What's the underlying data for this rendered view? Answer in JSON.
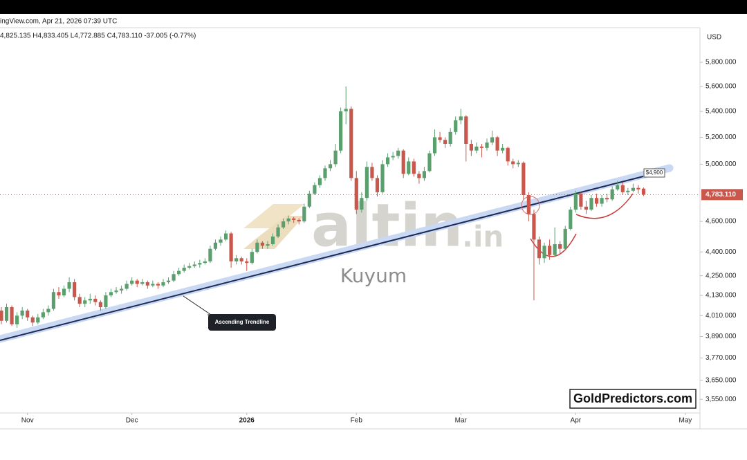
{
  "header": {
    "source": "ingView.com, Apr 21, 2026 07:39 UTC",
    "ohlc": "4,825.135  H4,833.405  L4,772.885  C4,783.110  -37.005 (-0.77%)"
  },
  "watermark": {
    "name": "altin",
    "suffix": ".in",
    "sub": "Kuyum"
  },
  "annotation": "Ascending Trendline",
  "level_label": "$4,900",
  "brand": "GoldPredictors.com",
  "chart_data": {
    "type": "candlestick",
    "axis_unit": "USD",
    "log": true,
    "grid": false,
    "up_color": "#5b9f6e",
    "down_color": "#c9574c",
    "xlim": [
      -0.26,
      133.8
    ],
    "xticks": [
      {
        "value": 5,
        "label": "Nov"
      },
      {
        "value": 25,
        "label": "Dec"
      },
      {
        "value": 47,
        "label": "2026"
      },
      {
        "value": 68,
        "label": "Feb"
      },
      {
        "value": 88,
        "label": "Mar"
      },
      {
        "value": 110,
        "label": "Apr"
      },
      {
        "value": 131,
        "label": "May"
      }
    ],
    "ylim": [
      3480,
      6100
    ],
    "yticks": [
      {
        "value": 3550,
        "label": "3,550.000"
      },
      {
        "value": 3650,
        "label": "3,650.000"
      },
      {
        "value": 3770,
        "label": "3,770.000"
      },
      {
        "value": 3890,
        "label": "3,890.000"
      },
      {
        "value": 4010,
        "label": "4,010.000"
      },
      {
        "value": 4130,
        "label": "4,130.000"
      },
      {
        "value": 4250,
        "label": "4,250.000"
      },
      {
        "value": 4400,
        "label": "4,400.000"
      },
      {
        "value": 4600,
        "label": "4,600.000"
      },
      {
        "value": 5000,
        "label": "5,000.000"
      },
      {
        "value": 5200,
        "label": "5,200.000"
      },
      {
        "value": 5400,
        "label": "5,400.000"
      },
      {
        "value": 5600,
        "label": "5,600.000"
      },
      {
        "value": 5800,
        "label": "5,800.000"
      }
    ],
    "last_price": {
      "value": 4783.11,
      "label": "4,783.110"
    },
    "ohlc": [
      [
        4040,
        4060,
        3960,
        3980
      ],
      [
        3980,
        4080,
        3970,
        4060
      ],
      [
        4060,
        4070,
        3950,
        3960
      ],
      [
        3960,
        4030,
        3940,
        4010
      ],
      [
        4010,
        4060,
        3990,
        4040
      ],
      [
        4040,
        4050,
        3980,
        4000
      ],
      [
        4000,
        4010,
        3950,
        3970
      ],
      [
        3970,
        4020,
        3960,
        4000
      ],
      [
        4000,
        4050,
        3990,
        4030
      ],
      [
        4030,
        4070,
        4010,
        4050
      ],
      [
        4050,
        4170,
        4040,
        4150
      ],
      [
        4150,
        4180,
        4110,
        4130
      ],
      [
        4130,
        4190,
        4120,
        4170
      ],
      [
        4170,
        4240,
        4150,
        4210
      ],
      [
        4210,
        4230,
        4100,
        4120
      ],
      [
        4120,
        4140,
        4060,
        4080
      ],
      [
        4080,
        4120,
        4060,
        4100
      ],
      [
        4100,
        4140,
        4080,
        4110
      ],
      [
        4110,
        4130,
        4070,
        4090
      ],
      [
        4090,
        4100,
        4040,
        4060
      ],
      [
        4060,
        4150,
        4050,
        4130
      ],
      [
        4130,
        4170,
        4120,
        4150
      ],
      [
        4150,
        4180,
        4140,
        4160
      ],
      [
        4160,
        4190,
        4140,
        4170
      ],
      [
        4170,
        4220,
        4160,
        4200
      ],
      [
        4200,
        4240,
        4190,
        4220
      ],
      [
        4220,
        4230,
        4180,
        4200
      ],
      [
        4200,
        4230,
        4190,
        4210
      ],
      [
        4210,
        4220,
        4170,
        4190
      ],
      [
        4190,
        4220,
        4180,
        4200
      ],
      [
        4200,
        4210,
        4170,
        4190
      ],
      [
        4190,
        4230,
        4180,
        4210
      ],
      [
        4210,
        4240,
        4200,
        4220
      ],
      [
        4220,
        4280,
        4210,
        4260
      ],
      [
        4260,
        4300,
        4250,
        4280
      ],
      [
        4280,
        4320,
        4270,
        4300
      ],
      [
        4300,
        4330,
        4290,
        4310
      ],
      [
        4310,
        4340,
        4300,
        4320
      ],
      [
        4320,
        4350,
        4300,
        4330
      ],
      [
        4330,
        4360,
        4320,
        4340
      ],
      [
        4340,
        4440,
        4330,
        4420
      ],
      [
        4420,
        4480,
        4410,
        4460
      ],
      [
        4460,
        4500,
        4440,
        4480
      ],
      [
        4480,
        4540,
        4470,
        4520
      ],
      [
        4520,
        4530,
        4300,
        4340
      ],
      [
        4340,
        4380,
        4320,
        4360
      ],
      [
        4360,
        4370,
        4320,
        4340
      ],
      [
        4340,
        4360,
        4280,
        4330
      ],
      [
        4330,
        4420,
        4320,
        4400
      ],
      [
        4400,
        4480,
        4390,
        4460
      ],
      [
        4460,
        4470,
        4420,
        4440
      ],
      [
        4440,
        4470,
        4420,
        4450
      ],
      [
        4450,
        4520,
        4440,
        4500
      ],
      [
        4500,
        4580,
        4490,
        4560
      ],
      [
        4560,
        4620,
        4550,
        4600
      ],
      [
        4600,
        4640,
        4580,
        4620
      ],
      [
        4620,
        4630,
        4590,
        4610
      ],
      [
        4610,
        4620,
        4580,
        4600
      ],
      [
        4600,
        4720,
        4590,
        4700
      ],
      [
        4700,
        4810,
        4690,
        4790
      ],
      [
        4790,
        4870,
        4780,
        4850
      ],
      [
        4850,
        4920,
        4830,
        4900
      ],
      [
        4900,
        4990,
        4880,
        4970
      ],
      [
        4970,
        5030,
        4950,
        5000
      ],
      [
        5000,
        5150,
        4980,
        5100
      ],
      [
        5100,
        5430,
        5080,
        5400
      ],
      [
        5400,
        5600,
        5300,
        5420
      ],
      [
        5420,
        5440,
        4880,
        4900
      ],
      [
        4900,
        4950,
        4650,
        4680
      ],
      [
        4680,
        4800,
        4660,
        4760
      ],
      [
        4760,
        5020,
        4740,
        4980
      ],
      [
        4980,
        5010,
        4880,
        4900
      ],
      [
        4900,
        4920,
        4770,
        4800
      ],
      [
        4800,
        5030,
        4790,
        5000
      ],
      [
        5000,
        5080,
        4980,
        5050
      ],
      [
        5050,
        5090,
        5030,
        5060
      ],
      [
        5060,
        5120,
        5040,
        5100
      ],
      [
        5100,
        5110,
        4900,
        4930
      ],
      [
        4930,
        5050,
        4920,
        5020
      ],
      [
        5020,
        5040,
        4910,
        4930
      ],
      [
        4930,
        4950,
        4860,
        4900
      ],
      [
        4900,
        4980,
        4880,
        4950
      ],
      [
        4950,
        5100,
        4940,
        5080
      ],
      [
        5080,
        5260,
        5060,
        5200
      ],
      [
        5200,
        5240,
        5160,
        5180
      ],
      [
        5180,
        5200,
        5120,
        5150
      ],
      [
        5150,
        5270,
        5130,
        5240
      ],
      [
        5240,
        5360,
        5220,
        5330
      ],
      [
        5330,
        5420,
        5300,
        5360
      ],
      [
        5360,
        5370,
        5020,
        5150
      ],
      [
        5150,
        5180,
        5060,
        5100
      ],
      [
        5100,
        5160,
        5080,
        5130
      ],
      [
        5130,
        5150,
        5050,
        5120
      ],
      [
        5120,
        5190,
        5100,
        5160
      ],
      [
        5160,
        5250,
        5140,
        5200
      ],
      [
        5200,
        5210,
        5060,
        5100
      ],
      [
        5100,
        5150,
        5080,
        5120
      ],
      [
        5120,
        5130,
        4990,
        5020
      ],
      [
        5020,
        5040,
        4970,
        5000
      ],
      [
        5000,
        5030,
        4980,
        5010
      ],
      [
        5010,
        5020,
        4750,
        4780
      ],
      [
        4780,
        4800,
        4600,
        4650
      ],
      [
        4650,
        4680,
        4100,
        4480
      ],
      [
        4480,
        4500,
        4320,
        4360
      ],
      [
        4360,
        4460,
        4330,
        4440
      ],
      [
        4440,
        4480,
        4350,
        4380
      ],
      [
        4380,
        4560,
        4370,
        4450
      ],
      [
        4450,
        4470,
        4390,
        4420
      ],
      [
        4420,
        4570,
        4410,
        4550
      ],
      [
        4550,
        4700,
        4540,
        4680
      ],
      [
        4680,
        4810,
        4660,
        4790
      ],
      [
        4790,
        4800,
        4680,
        4700
      ],
      [
        4700,
        4740,
        4650,
        4680
      ],
      [
        4680,
        4780,
        4670,
        4760
      ],
      [
        4760,
        4790,
        4700,
        4720
      ],
      [
        4720,
        4780,
        4700,
        4760
      ],
      [
        4760,
        4790,
        4730,
        4750
      ],
      [
        4750,
        4840,
        4740,
        4820
      ],
      [
        4820,
        4880,
        4810,
        4850
      ],
      [
        4850,
        4870,
        4780,
        4800
      ],
      [
        4800,
        4830,
        4780,
        4810
      ],
      [
        4810,
        4860,
        4800,
        4830
      ],
      [
        4830,
        4850,
        4790,
        4820
      ],
      [
        4825.135,
        4833.405,
        4772.885,
        4783.11
      ]
    ]
  }
}
